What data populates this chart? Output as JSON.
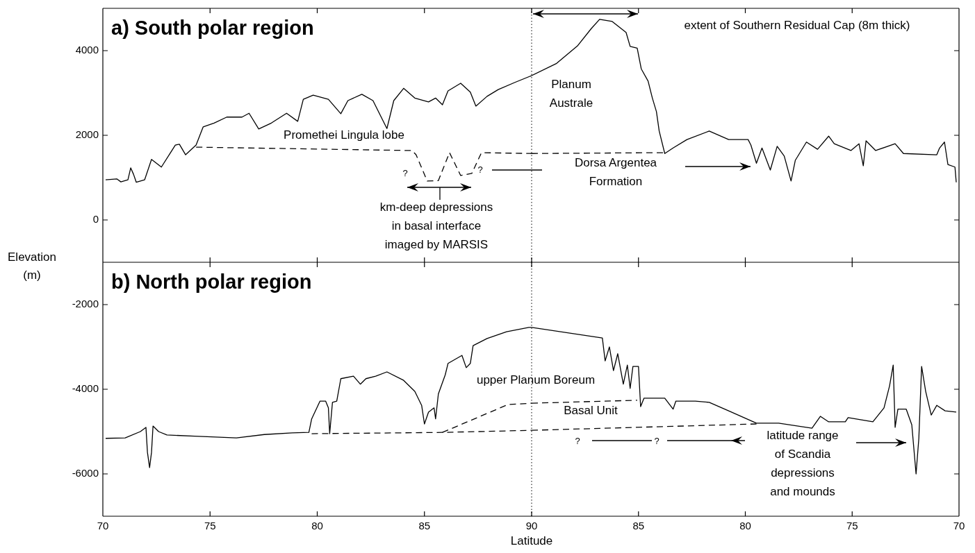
{
  "chart_data": [
    {
      "type": "line",
      "title": "a) South polar region",
      "ylabel": "Elevation (m)",
      "xlim": [
        70,
        90
      ],
      "xticks": [
        {
          "value": 70,
          "label": null
        },
        {
          "value": 75,
          "label": null
        },
        {
          "value": 80,
          "label": null
        },
        {
          "value": 85,
          "label": null
        },
        {
          "value": 90,
          "label": null
        }
      ],
      "ylim": [
        -1000,
        5000
      ],
      "yticks": [
        0,
        2000,
        4000
      ],
      "tick_labels": "y",
      "series": [
        {
          "color": "#000000",
          "line_style": "solid",
          "x": [
            70.13,
            70.65,
            70.84,
            71.17,
            71.3,
            71.43,
            71.56,
            71.95,
            72.27,
            72.73,
            73.18,
            73.38,
            73.57,
            73.86,
            74.35,
            74.68,
            75.19,
            75.78,
            76.49,
            76.82,
            77.27,
            77.86,
            78.57,
            79.09,
            79.35,
            79.81,
            80.52,
            81.1,
            81.43,
            82.08,
            82.6,
            83.25,
            83.57,
            84.03,
            84.55,
            85.19,
            85.52,
            85.84,
            86.1,
            86.69,
            87.14,
            87.4,
            87.92,
            88.44,
            89.22,
            90
          ],
          "values": [
            950,
            970,
            900,
            950,
            1230,
            1080,
            890,
            950,
            1430,
            1250,
            1610,
            1770,
            1790,
            1540,
            1770,
            2200,
            2290,
            2430,
            2430,
            2520,
            2150,
            2290,
            2520,
            2330,
            2850,
            2950,
            2850,
            2510,
            2820,
            2970,
            2820,
            2160,
            2820,
            3110,
            2880,
            2790,
            2880,
            2720,
            3050,
            3230,
            3020,
            2690,
            2920,
            3080,
            3250,
            3410
          ]
        },
        {
          "color": "#000000",
          "line_style": "dashed",
          "x": [
            74.35,
            84.42,
            84.61,
            85.13,
            85.65,
            86.17,
            86.69,
            87.21,
            87.66,
            90
          ],
          "values": [
            1720,
            1640,
            1540,
            920,
            930,
            1590,
            1050,
            1100,
            1590,
            1570
          ]
        }
      ],
      "ref_lines": [
        {
          "axis": "x",
          "value": 90,
          "line_style": "dotted",
          "color": "#000000"
        }
      ],
      "annotations": [
        "Promethei Lingula lobe",
        "km-deep depressions\nin basal interface\nimaged by MARSIS",
        "?",
        "?"
      ]
    },
    {
      "type": "line",
      "xlim": [
        90,
        70
      ],
      "xticks": [
        {
          "value": 85,
          "label": null
        },
        {
          "value": 80,
          "label": null
        },
        {
          "value": 75,
          "label": null
        },
        {
          "value": 70,
          "label": null
        }
      ],
      "ylim": [
        -1000,
        5000
      ],
      "yticks": [
        {
          "value": 0,
          "label": null
        },
        {
          "value": 2000,
          "label": null
        },
        {
          "value": 4000,
          "label": null
        }
      ],
      "tick_labels": false,
      "series": [
        {
          "color": "#000000",
          "line_style": "solid",
          "x": [
            90,
            88.83,
            87.86,
            87.21,
            86.82,
            86.23,
            85.58,
            85.39,
            85.06,
            84.87,
            84.55,
            84.35,
            84.16,
            84.03,
            83.77,
            83.38,
            82.73,
            81.69,
            80.78,
            79.87,
            79.74,
            79.48,
            79.22,
            78.83,
            78.51,
            78.18,
            77.86,
            77.66,
            77.14,
            76.62,
            76.1,
            75.84,
            75.06,
            74.68,
            74.48,
            74.35,
            73.9,
            72.99,
            72.6,
            71.04,
            70.91,
            70.68,
            70.52,
            70.19,
            70.13
          ],
          "values": [
            3410,
            3700,
            4110,
            4520,
            4740,
            4690,
            4430,
            4100,
            4060,
            3570,
            3280,
            2880,
            2560,
            2100,
            1570,
            1700,
            1900,
            2100,
            1900,
            1900,
            1770,
            1340,
            1700,
            1180,
            1740,
            1510,
            920,
            1410,
            1840,
            1670,
            1980,
            1800,
            1640,
            1800,
            1280,
            1870,
            1640,
            1800,
            1570,
            1540,
            1700,
            1840,
            1310,
            1250,
            890
          ]
        },
        {
          "color": "#000000",
          "line_style": "dashed",
          "x": [
            90,
            83.77
          ],
          "values": [
            1570,
            1590
          ]
        }
      ],
      "annotations": [
        "Planum\nAustrale",
        "extent of Southern Residual Cap (8m thick)",
        "Dorsa Argentea\nFormation"
      ]
    },
    {
      "type": "line",
      "title": "b) North polar region",
      "xlabel": "Latitude",
      "xlim": [
        70,
        90
      ],
      "xticks": [
        70,
        75,
        80,
        85,
        90
      ],
      "ylim": [
        -7000,
        -1000
      ],
      "yticks": [
        -6000,
        -4000,
        -2000
      ],
      "series": [
        {
          "color": "#000000",
          "line_style": "solid",
          "x": [
            70.13,
            71.04,
            71.75,
            72.01,
            72.08,
            72.18,
            72.27,
            72.34,
            72.6,
            72.99,
            74.29,
            76.23,
            77.53,
            78.83,
            79.61,
            79.74,
            80.13,
            80.39,
            80.52,
            80.58,
            80.71,
            80.91,
            81.1,
            81.69,
            82.01,
            82.27,
            82.73,
            83.25,
            84.03,
            84.55,
            84.87,
            85.0,
            85.19,
            85.45,
            85.52,
            85.65,
            85.97,
            86.1,
            86.75,
            86.95,
            87.14,
            87.27,
            87.92,
            88.83,
            89.87,
            90
          ],
          "values": [
            -5160,
            -5150,
            -5000,
            -4900,
            -5490,
            -5850,
            -5490,
            -4870,
            -5000,
            -5080,
            -5110,
            -5150,
            -5070,
            -5030,
            -5020,
            -4700,
            -4280,
            -4280,
            -4440,
            -5050,
            -4310,
            -4280,
            -3750,
            -3690,
            -3880,
            -3750,
            -3690,
            -3590,
            -3790,
            -4050,
            -4380,
            -4820,
            -4540,
            -4440,
            -4700,
            -4110,
            -3660,
            -3390,
            -3200,
            -3490,
            -3390,
            -2970,
            -2800,
            -2640,
            -2540,
            -2540
          ]
        },
        {
          "color": "#000000",
          "line_style": "dashed",
          "x": [
            79.74,
            85.84,
            90
          ],
          "values": [
            -5050,
            -5020,
            -4970
          ]
        },
        {
          "color": "#000000",
          "line_style": "dashed",
          "x": [
            85.84,
            88.44,
            88.9,
            90
          ],
          "values": [
            -5020,
            -4460,
            -4360,
            -4330
          ]
        }
      ],
      "ref_lines": [
        {
          "axis": "x",
          "value": 90,
          "line_style": "dotted",
          "color": "#000000"
        }
      ],
      "annotations": [
        "upper Planum Boreum"
      ]
    },
    {
      "type": "line",
      "xlim": [
        90,
        70
      ],
      "xticks": [
        85,
        80,
        75,
        70
      ],
      "ylim": [
        -7000,
        -1000
      ],
      "yticks": [
        {
          "value": -6000,
          "label": null
        },
        {
          "value": -4000,
          "label": null
        },
        {
          "value": -2000,
          "label": null
        }
      ],
      "tick_labels": "x",
      "series": [
        {
          "color": "#000000",
          "line_style": "solid",
          "x": [
            90,
            86.69,
            86.56,
            86.36,
            86.17,
            85.97,
            85.71,
            85.52,
            85.39,
            85.26,
            85.0,
            84.9,
            84.74,
            83.77,
            83.38,
            83.25,
            82.34,
            81.69,
            80.78,
            79.48,
            78.44,
            76.88,
            76.49,
            76.1,
            75.32,
            75.19,
            74.03,
            73.51,
            73.25,
            73.08,
            72.99,
            72.86,
            72.47,
            72.21,
            72.01,
            71.88,
            71.75,
            71.56,
            71.3,
            71.04,
            70.65,
            70.13
          ],
          "values": [
            -2540,
            -2790,
            -3330,
            -3000,
            -3560,
            -3160,
            -3880,
            -3430,
            -3980,
            -3460,
            -3460,
            -4410,
            -4210,
            -4210,
            -4470,
            -4280,
            -4280,
            -4310,
            -4510,
            -4800,
            -4800,
            -4920,
            -4640,
            -4770,
            -4770,
            -4670,
            -4770,
            -4440,
            -3920,
            -3430,
            -4900,
            -4470,
            -4470,
            -4840,
            -6000,
            -5160,
            -3460,
            -4050,
            -4610,
            -4380,
            -4510,
            -4540
          ]
        },
        {
          "color": "#000000",
          "line_style": "dashed",
          "x": [
            90,
            79.48
          ],
          "values": [
            -4970,
            -4820
          ]
        },
        {
          "color": "#000000",
          "line_style": "dashed",
          "x": [
            90,
            85.06
          ],
          "values": [
            -4330,
            -4260
          ]
        }
      ],
      "annotations": [
        "Basal Unit",
        "latitude range\nof Scandia\ndepressions\nand mounds",
        "?",
        "?"
      ]
    }
  ]
}
